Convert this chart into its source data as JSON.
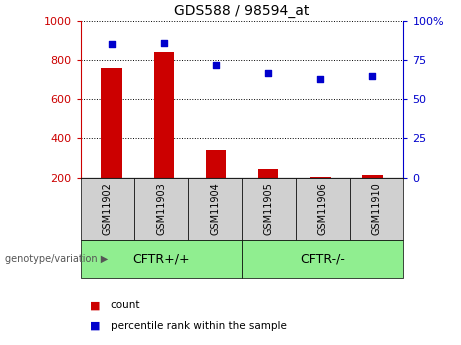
{
  "title": "GDS588 / 98594_at",
  "samples": [
    "GSM11902",
    "GSM11903",
    "GSM11904",
    "GSM11905",
    "GSM11906",
    "GSM11910"
  ],
  "count_values": [
    760,
    840,
    340,
    245,
    205,
    215
  ],
  "percentile_values": [
    85,
    86,
    72,
    67,
    63,
    65
  ],
  "count_baseline": 200,
  "ylim_left": [
    200,
    1000
  ],
  "ylim_right": [
    0,
    100
  ],
  "yticks_left": [
    200,
    400,
    600,
    800,
    1000
  ],
  "ytick_labels_left": [
    "200",
    "400",
    "600",
    "800",
    "1000"
  ],
  "yticks_right": [
    0,
    25,
    50,
    75,
    100
  ],
  "ytick_labels_right": [
    "0",
    "25",
    "50",
    "75",
    "100%"
  ],
  "bar_color": "#cc0000",
  "dot_color": "#0000cc",
  "groups": [
    {
      "label": "CFTR+/+",
      "start": 0,
      "end": 3,
      "color": "#90ee90"
    },
    {
      "label": "CFTR-/-",
      "start": 3,
      "end": 6,
      "color": "#90ee90"
    }
  ],
  "group_label": "genotype/variation",
  "legend_count_label": "count",
  "legend_pct_label": "percentile rank within the sample",
  "left_axis_color": "#cc0000",
  "right_axis_color": "#0000cc",
  "bar_width": 0.4,
  "dot_size": 25
}
